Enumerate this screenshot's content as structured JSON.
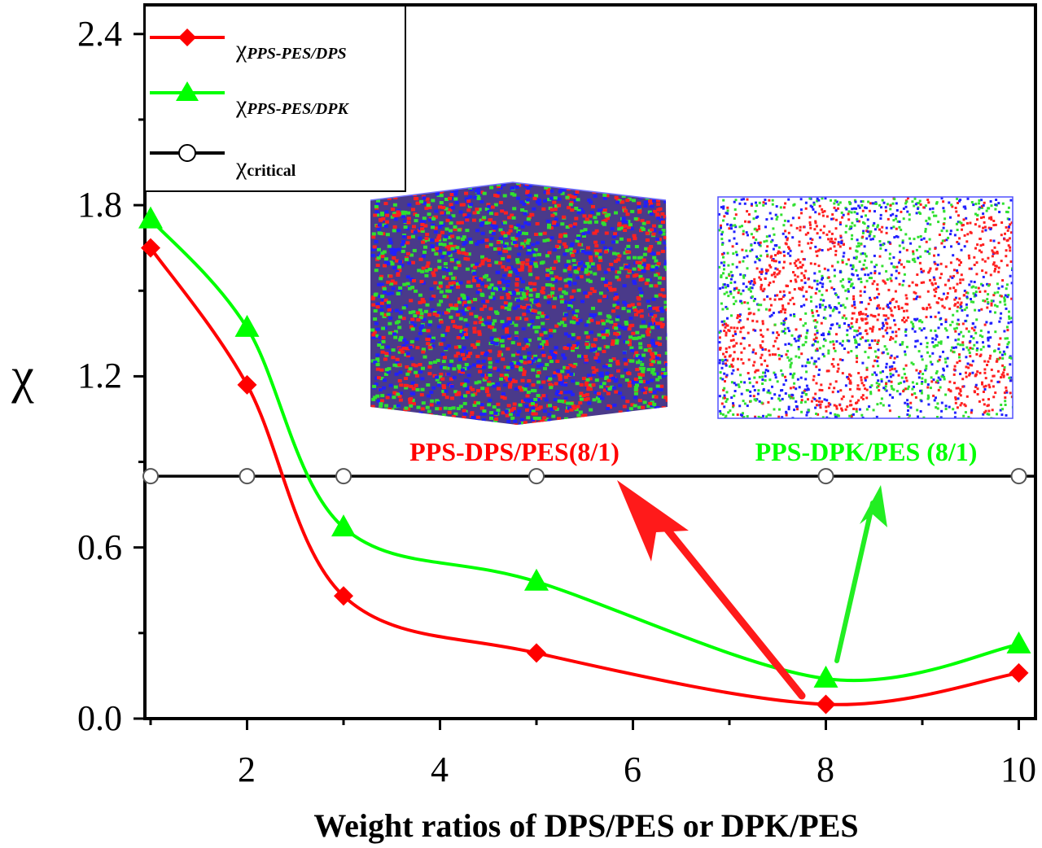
{
  "colors": {
    "dps": "#ff0000",
    "dpk": "#00ff00",
    "critical": "#000000",
    "inset_red": "#ff2020",
    "inset_green": "#30e030",
    "inset_blue": "#2020ff"
  },
  "chart_data": {
    "type": "line",
    "xlabel": "Weight ratios of DPS/PES or DPK/PES",
    "ylabel": "χ",
    "xlim": [
      0.9,
      10.2
    ],
    "ylim": [
      0.0,
      2.5
    ],
    "xticks": [
      "2",
      "4",
      "6",
      "8",
      "10"
    ],
    "yticks": [
      "0.0",
      "0.6",
      "1.2",
      "1.8",
      "2.4"
    ],
    "grid": false,
    "legend_position": "top-left",
    "series": [
      {
        "name": "χPPS-PES/DPS",
        "legend_main": "χ",
        "legend_sub": "PPS-PES/DPS",
        "marker": "diamond",
        "color": "#ff0000",
        "x": [
          1,
          2,
          3,
          5,
          8,
          10
        ],
        "y": [
          1.65,
          1.17,
          0.43,
          0.23,
          0.05,
          0.16
        ]
      },
      {
        "name": "χPPS-PES/DPK",
        "legend_main": "χ",
        "legend_sub": "PPS-PES/DPK",
        "marker": "triangle",
        "color": "#00ff00",
        "x": [
          1,
          2,
          3,
          5,
          8,
          10
        ],
        "y": [
          1.75,
          1.37,
          0.67,
          0.48,
          0.14,
          0.26
        ]
      },
      {
        "name": "χcritical",
        "legend_main": "χ",
        "legend_sub": "critical",
        "marker": "circle",
        "color": "#000000",
        "x": [
          1,
          2,
          3,
          5,
          8,
          10
        ],
        "y": [
          0.85,
          0.85,
          0.85,
          0.85,
          0.85,
          0.85
        ]
      }
    ],
    "insets": [
      {
        "caption": "PPS-DPS/PES(8/1)",
        "color": "#ff0000"
      },
      {
        "caption": "PPS-DPK/PES (8/1)",
        "color": "#00ff00"
      }
    ]
  }
}
